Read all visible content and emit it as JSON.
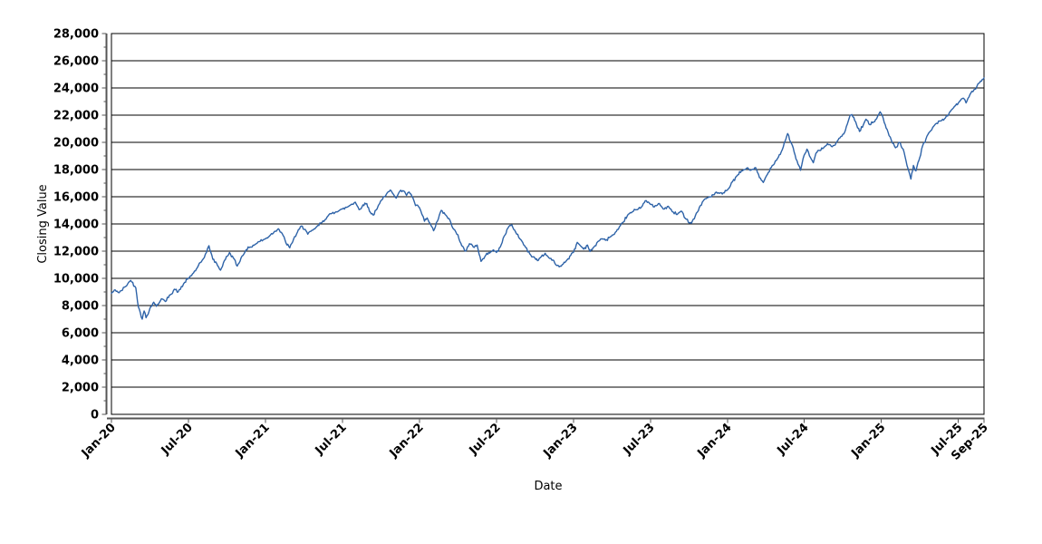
{
  "chart_data": {
    "type": "line",
    "title": "",
    "xlabel": "Date",
    "ylabel": "Closing Value",
    "legend": "none",
    "grid": "horizontal-major-only",
    "background_color": "#ffffff",
    "plot_border_color": "#000000",
    "axis_line_color": "#555555",
    "line_color": "#2e63a8",
    "ylim": [
      0,
      28000
    ],
    "y_tick_interval": 2000,
    "y_minor_tick_interval": 1000,
    "y_tick_labels": [
      "0",
      "2,000",
      "4,000",
      "6,000",
      "8,000",
      "10,000",
      "12,000",
      "14,000",
      "16,000",
      "18,000",
      "20,000",
      "22,000",
      "24,000",
      "26,000",
      "28,000"
    ],
    "x_ticks": [
      {
        "label": "Jan-20",
        "month": 0
      },
      {
        "label": "Jul-20",
        "month": 6
      },
      {
        "label": "Jan-21",
        "month": 12
      },
      {
        "label": "Jul-21",
        "month": 18
      },
      {
        "label": "Jan-22",
        "month": 24
      },
      {
        "label": "Jul-22",
        "month": 30
      },
      {
        "label": "Jan-23",
        "month": 36
      },
      {
        "label": "Jul-23",
        "month": 42
      },
      {
        "label": "Jan-24",
        "month": 48
      },
      {
        "label": "Jul-24",
        "month": 54
      },
      {
        "label": "Jan-25",
        "month": 60
      },
      {
        "label": "Jul-25",
        "month": 66
      },
      {
        "label": "Sep-25",
        "month": 68
      }
    ],
    "noise_amplitude": 115,
    "series": [
      {
        "name": "Closing Value",
        "x_unit": "months-since-Jan-2020",
        "points": [
          [
            0,
            8900
          ],
          [
            0.3,
            9150
          ],
          [
            0.6,
            8950
          ],
          [
            1.1,
            9400
          ],
          [
            1.5,
            9850
          ],
          [
            1.9,
            9300
          ],
          [
            2.1,
            7900
          ],
          [
            2.4,
            7000
          ],
          [
            2.55,
            7600
          ],
          [
            2.7,
            7100
          ],
          [
            3,
            7800
          ],
          [
            3.3,
            8250
          ],
          [
            3.5,
            7950
          ],
          [
            3.9,
            8500
          ],
          [
            4.2,
            8300
          ],
          [
            4.6,
            8800
          ],
          [
            4.9,
            9200
          ],
          [
            5.2,
            9000
          ],
          [
            5.7,
            9700
          ],
          [
            6,
            10000
          ],
          [
            6.4,
            10400
          ],
          [
            6.7,
            10800
          ],
          [
            7,
            11200
          ],
          [
            7.4,
            11900
          ],
          [
            7.6,
            12400
          ],
          [
            7.9,
            11400
          ],
          [
            8.2,
            11100
          ],
          [
            8.5,
            10600
          ],
          [
            8.8,
            11300
          ],
          [
            9.2,
            11900
          ],
          [
            9.5,
            11500
          ],
          [
            9.8,
            10900
          ],
          [
            10.1,
            11500
          ],
          [
            10.5,
            12100
          ],
          [
            10.8,
            12300
          ],
          [
            11.2,
            12500
          ],
          [
            11.5,
            12700
          ],
          [
            12,
            12900
          ],
          [
            12.4,
            13200
          ],
          [
            12.7,
            13450
          ],
          [
            13,
            13650
          ],
          [
            13.3,
            13300
          ],
          [
            13.6,
            12600
          ],
          [
            13.9,
            12250
          ],
          [
            14.2,
            12900
          ],
          [
            14.5,
            13400
          ],
          [
            14.8,
            13850
          ],
          [
            15.1,
            13600
          ],
          [
            15.3,
            13250
          ],
          [
            15.7,
            13550
          ],
          [
            16,
            13800
          ],
          [
            16.4,
            14100
          ],
          [
            16.8,
            14500
          ],
          [
            17.1,
            14750
          ],
          [
            17.5,
            14900
          ],
          [
            18,
            15100
          ],
          [
            18.4,
            15250
          ],
          [
            18.7,
            15450
          ],
          [
            19,
            15600
          ],
          [
            19.3,
            15050
          ],
          [
            19.6,
            15400
          ],
          [
            19.9,
            15500
          ],
          [
            20.1,
            14950
          ],
          [
            20.4,
            14650
          ],
          [
            20.7,
            15100
          ],
          [
            20.9,
            15500
          ],
          [
            21.2,
            16000
          ],
          [
            21.5,
            16300
          ],
          [
            21.8,
            16450
          ],
          [
            22,
            16150
          ],
          [
            22.2,
            15900
          ],
          [
            22.4,
            16300
          ],
          [
            22.7,
            16450
          ],
          [
            23,
            16100
          ],
          [
            23.2,
            16350
          ],
          [
            23.5,
            15900
          ],
          [
            23.7,
            15350
          ],
          [
            24,
            15200
          ],
          [
            24.2,
            14700
          ],
          [
            24.4,
            14200
          ],
          [
            24.6,
            14450
          ],
          [
            24.9,
            13900
          ],
          [
            25.1,
            13500
          ],
          [
            25.4,
            14200
          ],
          [
            25.7,
            15000
          ],
          [
            26,
            14700
          ],
          [
            26.3,
            14400
          ],
          [
            26.6,
            13700
          ],
          [
            27,
            13200
          ],
          [
            27.3,
            12400
          ],
          [
            27.6,
            12000
          ],
          [
            27.9,
            12550
          ],
          [
            28.2,
            12300
          ],
          [
            28.5,
            12450
          ],
          [
            28.8,
            11250
          ],
          [
            29.1,
            11600
          ],
          [
            29.4,
            11900
          ],
          [
            29.7,
            12050
          ],
          [
            30,
            11900
          ],
          [
            30.3,
            12300
          ],
          [
            30.6,
            13100
          ],
          [
            30.9,
            13700
          ],
          [
            31.2,
            13950
          ],
          [
            31.5,
            13400
          ],
          [
            31.9,
            12850
          ],
          [
            32.2,
            12400
          ],
          [
            32.6,
            11800
          ],
          [
            33,
            11500
          ],
          [
            33.2,
            11300
          ],
          [
            33.5,
            11600
          ],
          [
            33.8,
            11850
          ],
          [
            34.1,
            11500
          ],
          [
            34.4,
            11350
          ],
          [
            34.7,
            10950
          ],
          [
            34.9,
            10850
          ],
          [
            35.2,
            11050
          ],
          [
            35.5,
            11350
          ],
          [
            35.8,
            11700
          ],
          [
            36,
            11900
          ],
          [
            36.3,
            12650
          ],
          [
            36.6,
            12350
          ],
          [
            36.8,
            12150
          ],
          [
            37.1,
            12450
          ],
          [
            37.3,
            11970
          ],
          [
            37.6,
            12300
          ],
          [
            37.9,
            12700
          ],
          [
            38.2,
            12900
          ],
          [
            38.5,
            12800
          ],
          [
            38.8,
            13000
          ],
          [
            39.2,
            13250
          ],
          [
            39.5,
            13600
          ],
          [
            39.9,
            14150
          ],
          [
            40.2,
            14600
          ],
          [
            40.6,
            14900
          ],
          [
            40.9,
            15050
          ],
          [
            41.3,
            15250
          ],
          [
            41.6,
            15700
          ],
          [
            42,
            15450
          ],
          [
            42.3,
            15250
          ],
          [
            42.7,
            15500
          ],
          [
            43,
            15100
          ],
          [
            43.4,
            15300
          ],
          [
            43.7,
            14900
          ],
          [
            44.1,
            14700
          ],
          [
            44.4,
            14950
          ],
          [
            44.8,
            14350
          ],
          [
            45.2,
            14050
          ],
          [
            45.5,
            14600
          ],
          [
            45.9,
            15350
          ],
          [
            46.2,
            15800
          ],
          [
            46.6,
            16000
          ],
          [
            46.9,
            16150
          ],
          [
            47.3,
            16300
          ],
          [
            47.6,
            16200
          ],
          [
            48,
            16500
          ],
          [
            48.4,
            17100
          ],
          [
            48.8,
            17600
          ],
          [
            49.1,
            17900
          ],
          [
            49.5,
            18100
          ],
          [
            49.8,
            17950
          ],
          [
            50.2,
            18150
          ],
          [
            50.5,
            17400
          ],
          [
            50.8,
            17050
          ],
          [
            51.2,
            17800
          ],
          [
            51.5,
            18300
          ],
          [
            51.9,
            18800
          ],
          [
            52.2,
            19300
          ],
          [
            52.5,
            20100
          ],
          [
            52.7,
            20650
          ],
          [
            53,
            19900
          ],
          [
            53.2,
            19300
          ],
          [
            53.5,
            18400
          ],
          [
            53.7,
            17950
          ],
          [
            53.9,
            18800
          ],
          [
            54.2,
            19500
          ],
          [
            54.4,
            19000
          ],
          [
            54.7,
            18500
          ],
          [
            54.9,
            19200
          ],
          [
            55.2,
            19400
          ],
          [
            55.5,
            19600
          ],
          [
            55.8,
            19900
          ],
          [
            56.1,
            19700
          ],
          [
            56.4,
            19800
          ],
          [
            56.7,
            20300
          ],
          [
            57,
            20600
          ],
          [
            57.2,
            20900
          ],
          [
            57.5,
            21800
          ],
          [
            57.7,
            22050
          ],
          [
            58,
            21500
          ],
          [
            58.3,
            20800
          ],
          [
            58.6,
            21300
          ],
          [
            58.8,
            21700
          ],
          [
            59.1,
            21300
          ],
          [
            59.4,
            21500
          ],
          [
            59.7,
            21900
          ],
          [
            59.9,
            22250
          ],
          [
            60,
            22100
          ],
          [
            60.3,
            21300
          ],
          [
            60.6,
            20500
          ],
          [
            60.8,
            20100
          ],
          [
            61.1,
            19600
          ],
          [
            61.4,
            20000
          ],
          [
            61.7,
            19500
          ],
          [
            62,
            18300
          ],
          [
            62.3,
            17300
          ],
          [
            62.5,
            18300
          ],
          [
            62.7,
            17900
          ],
          [
            63,
            18900
          ],
          [
            63.2,
            19700
          ],
          [
            63.4,
            20000
          ],
          [
            63.7,
            20700
          ],
          [
            64,
            21100
          ],
          [
            64.3,
            21400
          ],
          [
            64.7,
            21600
          ],
          [
            65,
            21800
          ],
          [
            65.4,
            22300
          ],
          [
            65.7,
            22650
          ],
          [
            66,
            22900
          ],
          [
            66.4,
            23250
          ],
          [
            66.6,
            22900
          ],
          [
            66.9,
            23500
          ],
          [
            67.3,
            23900
          ],
          [
            67.6,
            24350
          ],
          [
            67.8,
            24500
          ],
          [
            68,
            24750
          ]
        ]
      }
    ]
  }
}
